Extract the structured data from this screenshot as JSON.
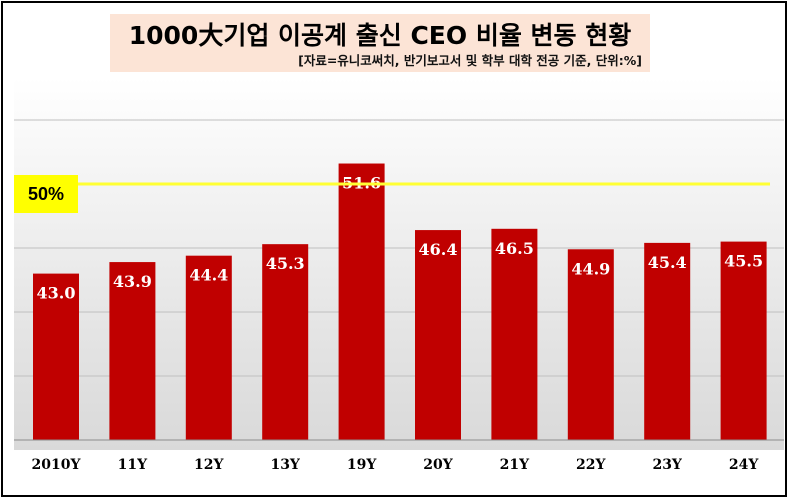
{
  "chart_data": {
    "type": "bar",
    "title": "1000大기업 이공계 출신 CEO 비율 변동 현황",
    "subtitle": "[자료=유니코써치,  반기보고서 및 학부 대학 전공 기준, 단위:%]",
    "categories": [
      "2010Y",
      "11Y",
      "12Y",
      "13Y",
      "19Y",
      "20Y",
      "21Y",
      "22Y",
      "23Y",
      "24Y"
    ],
    "values": [
      43.0,
      43.9,
      44.4,
      45.3,
      51.6,
      46.4,
      46.5,
      44.9,
      45.4,
      45.5
    ],
    "value_labels": [
      "43.0",
      "43.9",
      "44.4",
      "45.3",
      "51.6",
      "46.4",
      "46.5",
      "44.9",
      "45.4",
      "45.5"
    ],
    "ylim": [
      30,
      55
    ],
    "grid": true,
    "bar_color": "#c00000",
    "reference_line": {
      "value": 50,
      "label": "50%",
      "color": "#ffff33"
    },
    "xlabel": "",
    "ylabel": ""
  }
}
